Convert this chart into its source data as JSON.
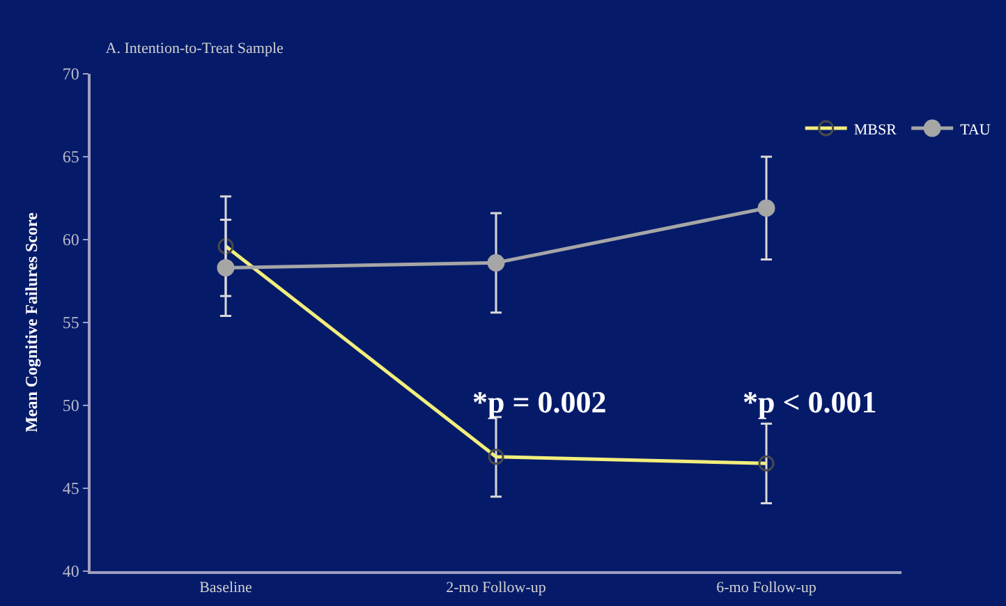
{
  "chart_data": {
    "type": "line",
    "title": "A. Intention-to-Treat Sample",
    "ylabel": "Mean Cognitive Failures Score",
    "categories": [
      "Baseline",
      "2-mo Follow-up",
      "6-mo Follow-up"
    ],
    "series": [
      {
        "name": "MBSR",
        "color": "#f2ee7c",
        "values": [
          59.6,
          46.9,
          46.5
        ],
        "errors": [
          3.0,
          2.4,
          2.4
        ]
      },
      {
        "name": "TAU",
        "color": "#a6a6a6",
        "values": [
          58.3,
          58.6,
          61.9
        ],
        "errors": [
          2.9,
          3.0,
          3.1
        ]
      }
    ],
    "annotations": [
      "*p = 0.002",
      "*p < 0.001"
    ],
    "ylim": [
      40,
      70
    ],
    "yticks": [
      40,
      45,
      50,
      55,
      60,
      65,
      70
    ],
    "grid": false,
    "legend": "top right",
    "marker": "circle",
    "line_style": "solid"
  }
}
